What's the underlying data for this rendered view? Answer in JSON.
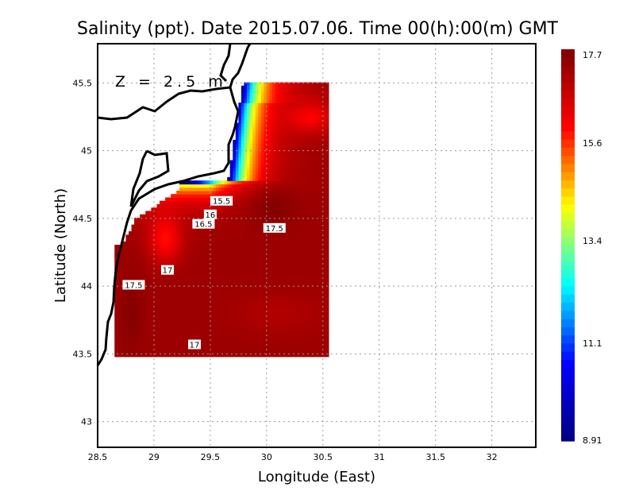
{
  "chart_data": {
    "type": "heatmap",
    "title": "Salinity (ppt). Date 2015.07.06. Time 00(h):00(m) GMT",
    "annotation": "Z = 2.5 m",
    "xlabel": "Longitude (East)",
    "ylabel": "Latitude (North)",
    "xlim": [
      28.5,
      32.39
    ],
    "ylim": [
      42.81,
      45.79
    ],
    "xticks": [
      "28.5",
      "29",
      "29.5",
      "30",
      "30.5",
      "31",
      "31.5",
      "32"
    ],
    "xtick_values": [
      28.5,
      29,
      29.5,
      30,
      30.5,
      31,
      31.5,
      32
    ],
    "yticks": [
      "43",
      "43.5",
      "44",
      "44.5",
      "45",
      "45.5"
    ],
    "ytick_values": [
      43,
      43.5,
      44,
      44.5,
      45,
      45.5
    ],
    "grid": true,
    "data_extent": {
      "lon": [
        28.65,
        30.55
      ],
      "lat": [
        43.48,
        45.5
      ]
    },
    "colorbar": {
      "min": 8.91,
      "max": 17.7,
      "tick_labels": [
        "17.7",
        "15.6",
        "13.4",
        "11.1",
        "8.91"
      ],
      "tick_values": [
        17.7,
        15.6,
        13.4,
        11.1,
        8.91
      ],
      "colormap": [
        "#00007f",
        "#0000ff",
        "#00ffff",
        "#ffff00",
        "#ff0000",
        "#7f0000"
      ]
    },
    "contour_labels": [
      {
        "text": "15.5",
        "lon": 29.6,
        "lat": 44.63
      },
      {
        "text": "16",
        "lon": 29.5,
        "lat": 44.53
      },
      {
        "text": "16.5",
        "lon": 29.44,
        "lat": 44.46
      },
      {
        "text": "17.5",
        "lon": 30.07,
        "lat": 44.43
      },
      {
        "text": "17",
        "lon": 29.12,
        "lat": 44.12
      },
      {
        "text": "17.5",
        "lon": 28.82,
        "lat": 44.01
      },
      {
        "text": "17",
        "lon": 29.36,
        "lat": 43.57
      }
    ]
  }
}
